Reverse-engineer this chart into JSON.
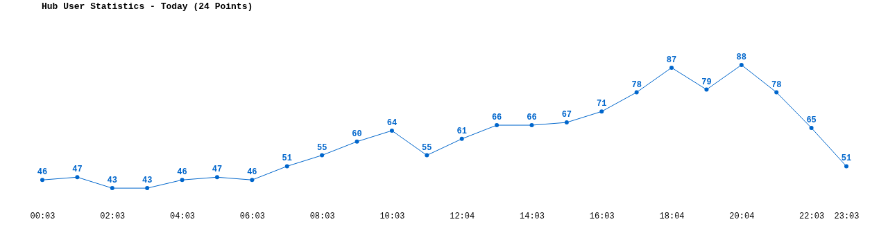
{
  "chart_data": {
    "type": "line",
    "title": "Hub User Statistics - Today (24 Points)",
    "categories": [
      "00:03",
      null,
      "02:03",
      null,
      "04:03",
      null,
      "06:03",
      null,
      "08:03",
      null,
      "10:03",
      null,
      "12:04",
      null,
      "14:03",
      null,
      "16:03",
      null,
      "18:04",
      null,
      "20:04",
      null,
      "22:03",
      "23:03"
    ],
    "series": [
      {
        "color": "#0066cc",
        "values": [
          46,
          47,
          43,
          43,
          46,
          47,
          46,
          51,
          55,
          60,
          64,
          55,
          61,
          66,
          66,
          67,
          71,
          78,
          87,
          79,
          88,
          78,
          65,
          51
        ]
      }
    ],
    "data_labels": true,
    "marker": "circle",
    "line_style": "solid",
    "grid": false
  }
}
